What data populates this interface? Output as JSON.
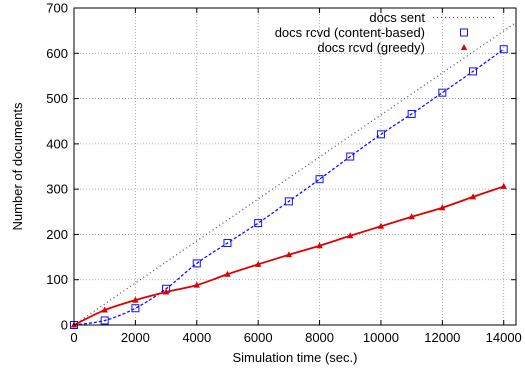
{
  "chart_data": {
    "type": "line",
    "title": "",
    "xlabel": "Simulation time (sec.)",
    "ylabel": "Number of documents",
    "xlim": [
      0,
      14400
    ],
    "ylim": [
      0,
      700
    ],
    "xticks": [
      0,
      2000,
      4000,
      6000,
      8000,
      10000,
      12000,
      14000
    ],
    "xtick_labels": [
      "0",
      "2000",
      "4000",
      "6000",
      "8000",
      "10000",
      "12000",
      "14000"
    ],
    "yticks": [
      0,
      100,
      200,
      300,
      400,
      500,
      600,
      700
    ],
    "ytick_labels": [
      "0",
      "100",
      "200",
      "300",
      "400",
      "500",
      "600",
      "700"
    ],
    "grid": true,
    "legend_position": "top-right",
    "series": [
      {
        "name": "docs sent",
        "color": "#555555",
        "line_style": "dotted",
        "marker": "none",
        "x": [
          0,
          14400
        ],
        "y": [
          0,
          668
        ]
      },
      {
        "name": "docs rcvd (content-based)",
        "color": "#1010ff",
        "line_style": "dashed",
        "marker": "square",
        "x": [
          0,
          1000,
          2000,
          3000,
          4000,
          5000,
          6000,
          7000,
          8000,
          9000,
          10000,
          11000,
          12000,
          13000,
          14000
        ],
        "y": [
          0,
          10,
          37,
          80,
          136,
          181,
          225,
          273,
          322,
          372,
          421,
          466,
          513,
          560,
          609
        ]
      },
      {
        "name": "docs rcvd (greedy)",
        "color": "#e00000",
        "line_style": "solid",
        "marker": "triangle",
        "x": [
          0,
          1000,
          2000,
          3000,
          4000,
          5000,
          6000,
          7000,
          8000,
          9000,
          10000,
          11000,
          12000,
          13000,
          14000
        ],
        "y": [
          0,
          33,
          55,
          73,
          88,
          112,
          134,
          155,
          175,
          197,
          218,
          239,
          259,
          283,
          306
        ]
      }
    ]
  }
}
